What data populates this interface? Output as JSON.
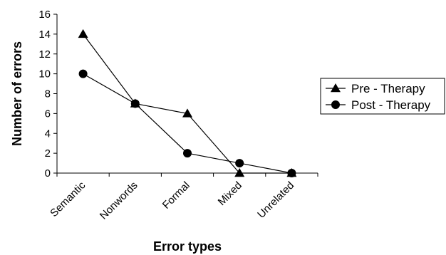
{
  "chart_data": {
    "type": "line",
    "title": "",
    "xlabel": "Error types",
    "ylabel": "Number of errors",
    "categories": [
      "Semantic",
      "Nonwords",
      "Formal",
      "Mixed",
      "Unrelated"
    ],
    "ylim": [
      0,
      16
    ],
    "yticks": [
      0,
      2,
      4,
      6,
      8,
      10,
      12,
      14,
      16
    ],
    "grid": false,
    "legend_position": "right",
    "series": [
      {
        "name": "Pre - Therapy",
        "marker": "triangle",
        "values": [
          14,
          7,
          6,
          0,
          0
        ]
      },
      {
        "name": "Post - Therapy",
        "marker": "circle",
        "values": [
          10,
          7,
          2,
          1,
          0
        ]
      }
    ]
  }
}
